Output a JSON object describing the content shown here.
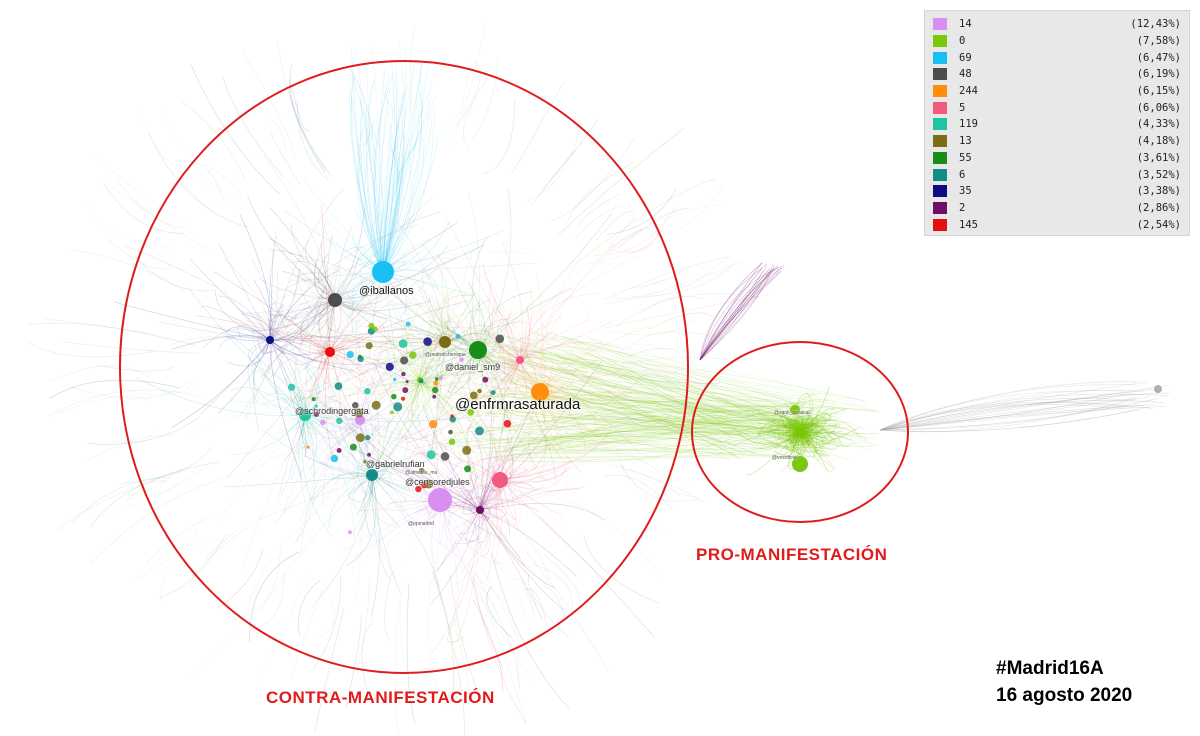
{
  "legend": [
    {
      "label": "14",
      "pct": "(12,43%)",
      "color": "#d98ff2"
    },
    {
      "label": "0",
      "pct": "(7,58%)",
      "color": "#7ac70c"
    },
    {
      "label": "69",
      "pct": "(6,47%)",
      "color": "#19bff2"
    },
    {
      "label": "48",
      "pct": "(6,19%)",
      "color": "#4d4d4d"
    },
    {
      "label": "244",
      "pct": "(6,15%)",
      "color": "#ff8c0a"
    },
    {
      "label": "5",
      "pct": "(6,06%)",
      "color": "#f2597f"
    },
    {
      "label": "119",
      "pct": "(4,33%)",
      "color": "#1fc4a0"
    },
    {
      "label": "13",
      "pct": "(4,18%)",
      "color": "#7a6e14"
    },
    {
      "label": "55",
      "pct": "(3,61%)",
      "color": "#1a8c1a"
    },
    {
      "label": "6",
      "pct": "(3,52%)",
      "color": "#128c87"
    },
    {
      "label": "35",
      "pct": "(3,38%)",
      "color": "#0d0d80"
    },
    {
      "label": "2",
      "pct": "(2,86%)",
      "color": "#6e0f66"
    },
    {
      "label": "145",
      "pct": "(2,54%)",
      "color": "#e60f0f"
    }
  ],
  "node_labels": {
    "iballanos": "@iballanos",
    "enfrmrasaturada": "@enfrmrasaturada",
    "daniel_sm9": "@daniel_sm9",
    "schrodingergata": "@schrodingergata",
    "gabrielrufian": "@gabrielrufian",
    "censoredjules": "@censoredjules",
    "voxoficial": "@voxoficial",
    "echenique_tiny": "@pedroechenique",
    "almeida_tiny": "@almeida_ma",
    "ppmadrid_tiny": "@ppmadrid",
    "abascal_tiny": "@santi_abascal"
  },
  "clusters": {
    "contra": "CONTRA-MANIFESTACIÓN",
    "pro": "PRO-MANIFESTACIÓN"
  },
  "hashtag": "#Madrid16A",
  "date": "16 agosto 2020",
  "colors": {
    "annotation_red": "#e01b1b",
    "legend_bg": "#e8e8e8"
  }
}
